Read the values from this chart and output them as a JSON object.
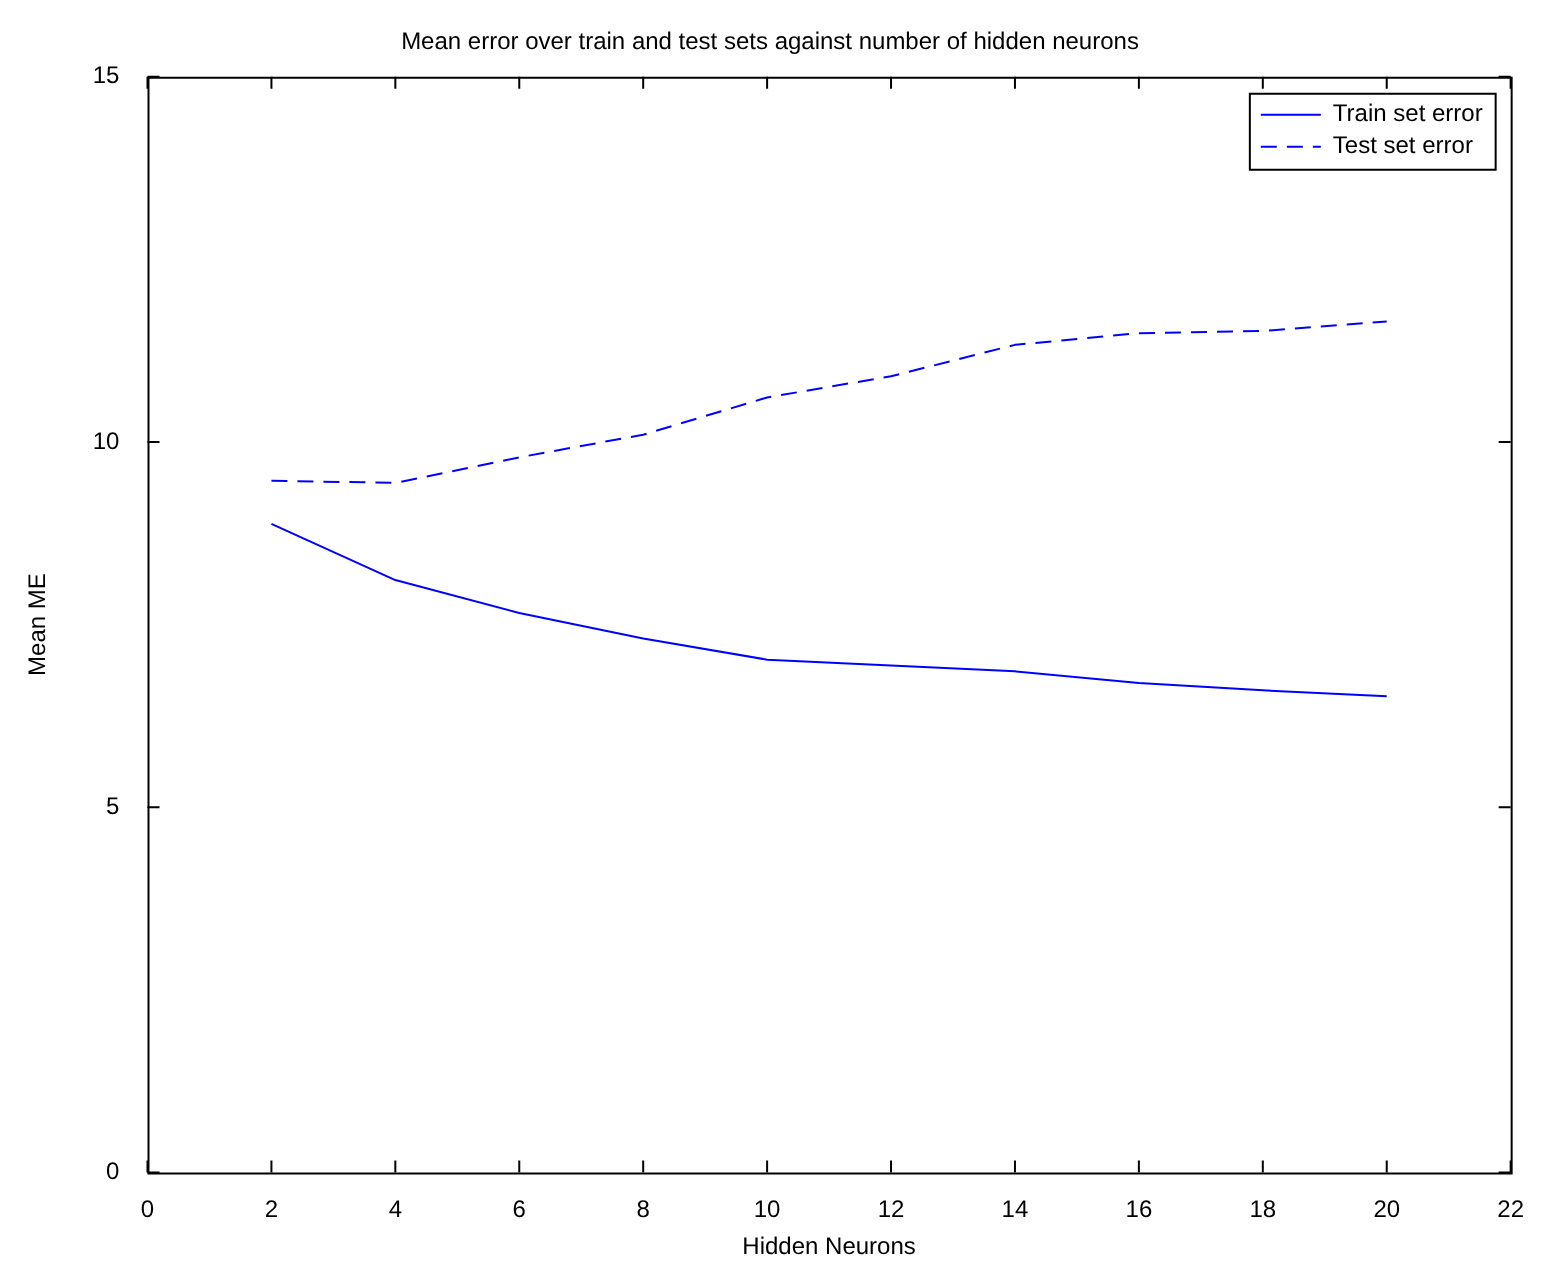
{
  "chart_data": {
    "type": "line",
    "title": "Mean error over train and test sets against number of hidden neurons",
    "xlabel": "Hidden Neurons",
    "ylabel": "Mean ME",
    "x": [
      2,
      4,
      6,
      8,
      10,
      12,
      14,
      16,
      18,
      20
    ],
    "series": [
      {
        "name": "Train set error",
        "color": "#0000ff",
        "line_style": "solid",
        "values": [
          8.88,
          8.11,
          7.66,
          7.31,
          7.02,
          6.94,
          6.86,
          6.7,
          6.6,
          6.52
        ]
      },
      {
        "name": "Test set error",
        "color": "#0000ff",
        "line_style": "dashed",
        "values": [
          9.47,
          9.44,
          9.79,
          10.1,
          10.61,
          10.9,
          11.33,
          11.49,
          11.52,
          11.65
        ]
      }
    ],
    "xlim": [
      0,
      22
    ],
    "xticks": [
      0,
      2,
      4,
      6,
      8,
      10,
      12,
      14,
      16,
      18,
      20,
      22
    ],
    "ylim": [
      0,
      15
    ],
    "yticks": [
      0,
      5,
      10,
      15
    ],
    "grid": false,
    "legend": "top right",
    "marker": "none"
  }
}
